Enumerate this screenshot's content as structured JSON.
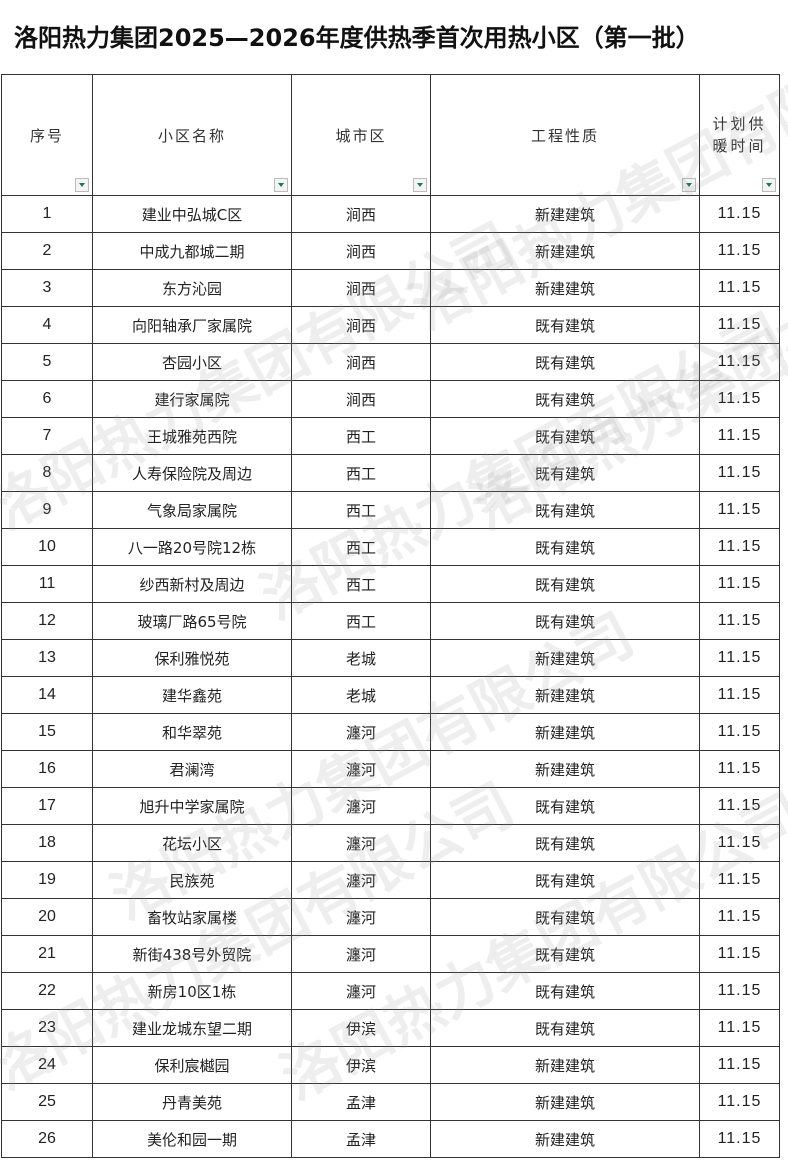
{
  "title": "洛阳热力集团2025—2026年度供热季首次用热小区（第一批）",
  "watermark": "洛阳热力集团有限公司",
  "headers": [
    "序号",
    "小区名称",
    "城市区",
    "工程性质",
    "计划供暖时间"
  ],
  "rows": [
    [
      "1",
      "建业中弘城C区",
      "涧西",
      "新建建筑",
      "11.15"
    ],
    [
      "2",
      "中成九都城二期",
      "涧西",
      "新建建筑",
      "11.15"
    ],
    [
      "3",
      "东方沁园",
      "涧西",
      "新建建筑",
      "11.15"
    ],
    [
      "4",
      "向阳轴承厂家属院",
      "涧西",
      "既有建筑",
      "11.15"
    ],
    [
      "5",
      "杏园小区",
      "涧西",
      "既有建筑",
      "11.15"
    ],
    [
      "6",
      "建行家属院",
      "涧西",
      "既有建筑",
      "11.15"
    ],
    [
      "7",
      "王城雅苑西院",
      "西工",
      "既有建筑",
      "11.15"
    ],
    [
      "8",
      "人寿保险院及周边",
      "西工",
      "既有建筑",
      "11.15"
    ],
    [
      "9",
      "气象局家属院",
      "西工",
      "既有建筑",
      "11.15"
    ],
    [
      "10",
      "八一路20号院12栋",
      "西工",
      "既有建筑",
      "11.15"
    ],
    [
      "11",
      "纱西新村及周边",
      "西工",
      "既有建筑",
      "11.15"
    ],
    [
      "12",
      "玻璃厂路65号院",
      "西工",
      "既有建筑",
      "11.15"
    ],
    [
      "13",
      "保利雅悦苑",
      "老城",
      "新建建筑",
      "11.15"
    ],
    [
      "14",
      "建华鑫苑",
      "老城",
      "新建建筑",
      "11.15"
    ],
    [
      "15",
      "和华翠苑",
      "瀍河",
      "新建建筑",
      "11.15"
    ],
    [
      "16",
      "君澜湾",
      "瀍河",
      "新建建筑",
      "11.15"
    ],
    [
      "17",
      "旭升中学家属院",
      "瀍河",
      "既有建筑",
      "11.15"
    ],
    [
      "18",
      "花坛小区",
      "瀍河",
      "既有建筑",
      "11.15"
    ],
    [
      "19",
      "民族苑",
      "瀍河",
      "既有建筑",
      "11.15"
    ],
    [
      "20",
      "畜牧站家属楼",
      "瀍河",
      "既有建筑",
      "11.15"
    ],
    [
      "21",
      "新街438号外贸院",
      "瀍河",
      "既有建筑",
      "11.15"
    ],
    [
      "22",
      "新房10区1栋",
      "瀍河",
      "既有建筑",
      "11.15"
    ],
    [
      "23",
      "建业龙城东望二期",
      "伊滨",
      "既有建筑",
      "11.15"
    ],
    [
      "24",
      "保利宸樾园",
      "伊滨",
      "新建建筑",
      "11.15"
    ],
    [
      "25",
      "丹青美苑",
      "孟津",
      "新建建筑",
      "11.15"
    ],
    [
      "26",
      "美伦和园一期",
      "孟津",
      "新建建筑",
      "11.15"
    ]
  ]
}
